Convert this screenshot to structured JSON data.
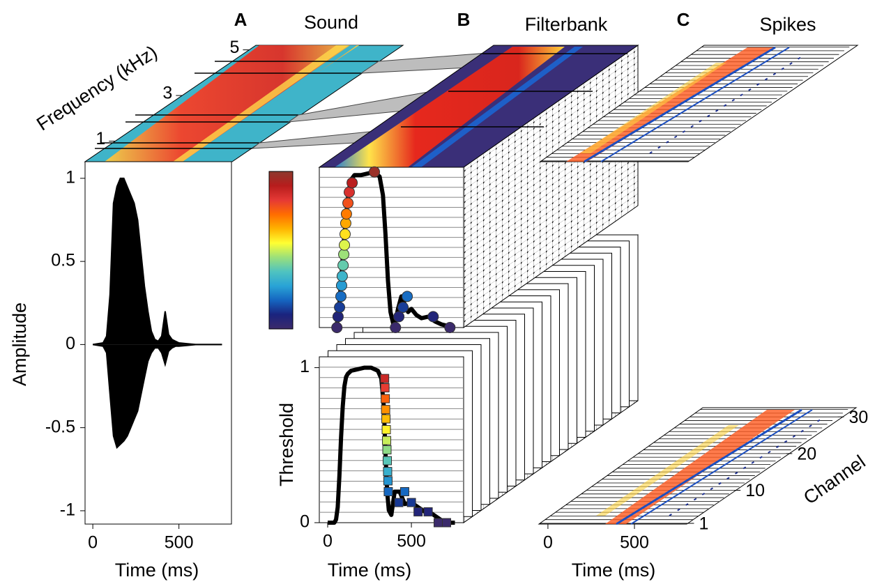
{
  "chart_data": [
    {
      "type": "spectrogram",
      "panel": "A",
      "title": "Sound",
      "ylabel": "Frequency (kHz)",
      "ylim": [
        0.1,
        5.2
      ],
      "yticks": [
        1,
        3,
        5
      ]
    },
    {
      "type": "waveform",
      "xlabel": "Time (ms)",
      "ylabel": "Amplitude",
      "color": "#000000",
      "xlim": [
        -45,
        805
      ],
      "ylim": [
        -1.08,
        1.1
      ],
      "xticks": [
        0,
        500
      ],
      "yticks": [
        -1,
        -0.5,
        0,
        0.5,
        1
      ],
      "x": [
        0,
        60,
        80,
        100,
        120,
        140,
        160,
        180,
        200,
        220,
        240,
        260,
        280,
        300,
        320,
        340,
        360,
        380,
        400,
        420,
        440,
        460,
        480,
        500,
        550,
        600,
        650,
        700,
        750
      ],
      "upper": [
        0,
        0.01,
        0.05,
        0.3,
        0.85,
        0.95,
        1.0,
        1.0,
        0.95,
        0.9,
        0.85,
        0.75,
        0.55,
        0.35,
        0.2,
        0.08,
        0.03,
        0.02,
        0.05,
        0.2,
        0.06,
        0.03,
        0.02,
        0.01,
        0.005,
        0,
        0,
        0,
        0
      ],
      "lower": [
        0,
        -0.01,
        -0.05,
        -0.3,
        -0.55,
        -0.62,
        -0.6,
        -0.58,
        -0.55,
        -0.5,
        -0.45,
        -0.4,
        -0.3,
        -0.2,
        -0.1,
        -0.05,
        -0.02,
        -0.02,
        -0.05,
        -0.12,
        -0.04,
        -0.02,
        -0.01,
        -0.01,
        -0.005,
        0,
        0,
        0,
        0
      ]
    },
    {
      "type": "filterbank",
      "panel": "B",
      "title": "Filterbank",
      "marker": "circle",
      "colormap": [
        "#3b2a6b",
        "#1a237e",
        "#1565c0",
        "#29a3d6",
        "#4fc3c0",
        "#9be07a",
        "#ffff33",
        "#ffb300",
        "#ff6d00",
        "#e53935",
        "#b71c1c",
        "#8d3a2e"
      ],
      "xlim": [
        -50,
        812
      ],
      "ylim": [
        0,
        1.03
      ],
      "x": [
        50,
        60,
        70,
        80,
        90,
        100,
        110,
        120,
        130,
        140,
        160,
        200,
        240,
        280,
        310,
        330,
        345,
        360,
        375,
        390,
        400,
        420,
        440,
        460,
        480,
        500,
        530,
        560,
        600,
        640,
        680,
        720,
        760
      ],
      "values": [
        0,
        0.05,
        0.15,
        0.3,
        0.45,
        0.6,
        0.72,
        0.82,
        0.9,
        0.95,
        0.98,
        0.98,
        0.99,
        1.0,
        0.97,
        0.85,
        0.6,
        0.3,
        0.1,
        0.03,
        0.02,
        0.12,
        0.2,
        0.15,
        0.1,
        0.12,
        0.08,
        0.06,
        0.07,
        0.04,
        0.02,
        0.01,
        0
      ],
      "markers": {
        "x": [
          55,
          62,
          71,
          79,
          83,
          87,
          92,
          96,
          100,
          104,
          108,
          112,
          121,
          129,
          146,
          279,
          405,
          425,
          450,
          475,
          630,
          730
        ],
        "y": [
          0,
          0.07,
          0.13,
          0.2,
          0.27,
          0.33,
          0.4,
          0.47,
          0.53,
          0.6,
          0.67,
          0.73,
          0.8,
          0.87,
          0.93,
          1.0,
          0,
          0.07,
          0.13,
          0.2,
          0.07,
          0
        ]
      }
    },
    {
      "type": "threshold",
      "xlabel": "Time (ms)",
      "ylabel": "Threshold",
      "marker": "square",
      "xlim": [
        -50,
        812
      ],
      "ylim": [
        0,
        1.07
      ],
      "xticks": [
        0,
        500
      ],
      "yticks": [
        0,
        1
      ],
      "x": [
        0,
        40,
        50,
        60,
        70,
        80,
        90,
        100,
        110,
        120,
        140,
        180,
        220,
        260,
        300,
        320,
        335,
        345,
        355,
        365,
        380,
        400,
        430,
        460,
        500,
        540,
        580,
        620,
        660,
        700,
        760
      ],
      "values": [
        0,
        0,
        0.02,
        0.1,
        0.3,
        0.55,
        0.75,
        0.88,
        0.94,
        0.96,
        0.98,
        0.99,
        1.0,
        1.0,
        0.98,
        0.93,
        0.75,
        0.45,
        0.2,
        0.08,
        0.05,
        0.2,
        0.2,
        0.12,
        0.13,
        0.1,
        0.07,
        0.06,
        0.03,
        0,
        0
      ],
      "markers": {
        "x": [
          340,
          342,
          344,
          346,
          348,
          350,
          352,
          354,
          356,
          358,
          360,
          362,
          425,
          460,
          500,
          540,
          600,
          660,
          710
        ],
        "y": [
          0.93,
          0.87,
          0.8,
          0.73,
          0.67,
          0.6,
          0.53,
          0.47,
          0.4,
          0.33,
          0.27,
          0.2,
          0.13,
          0.2,
          0.13,
          0.07,
          0.07,
          0,
          0
        ]
      }
    },
    {
      "type": "spikes",
      "panel": "C",
      "title": "Spikes",
      "xlabel": "Time (ms)",
      "ylabel": "Channel",
      "xlim": [
        -52,
        802
      ],
      "ylim": [
        0.8,
        32.5
      ],
      "xticks": [
        0,
        500
      ],
      "yticks": [
        1,
        10,
        20,
        30
      ]
    }
  ]
}
